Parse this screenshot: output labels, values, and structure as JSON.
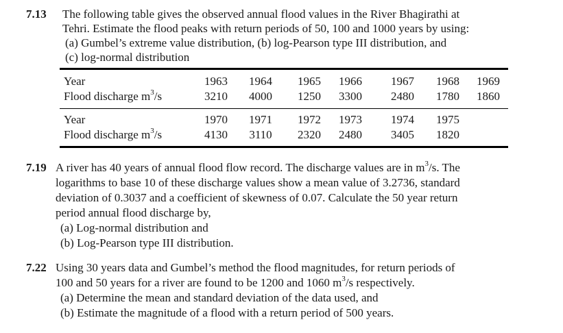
{
  "p713": {
    "number": "7.13",
    "lines": [
      "The following table gives the observed annual flood values in the River Bhagirathi at",
      "Tehri. Estimate the flood peaks with return periods of 50, 100 and 1000 years by using:",
      "(a)  Gumbel’s extreme value distribution,   (b)  log-Pearson type III distribution, and",
      "(c)  log-normal distribution"
    ],
    "table": {
      "row_label_year": "Year",
      "row_label_flow": "Flood discharge m",
      "unit_sup": "3",
      "unit_tail": "/s",
      "block1_years": [
        "1963",
        "1964",
        "1965",
        "1966",
        "1967",
        "1968",
        "1969"
      ],
      "block1_values": [
        "3210",
        "4000",
        "1250",
        "3300",
        "2480",
        "1780",
        "1860"
      ],
      "block2_years": [
        "1970",
        "1971",
        "1972",
        "1973",
        "1974",
        "1975"
      ],
      "block2_values": [
        "4130",
        "3110",
        "2320",
        "2480",
        "3405",
        "1820"
      ]
    }
  },
  "p719": {
    "number": "7.19",
    "line1_a": "A river has 40 years of annual flood flow record. The discharge values are in m",
    "line1_sup": "3",
    "line1_b": "/s. The",
    "line2": "logarithms to base 10 of these discharge values show a mean value of 3.2736, standard",
    "line3": "deviation of 0.3037 and a coefficient of skewness of 0.07. Calculate the 50 year return",
    "line4": "period annual flood discharge by,",
    "item_a": "(a)  Log-normal distribution and",
    "item_b": "(b)  Log-Pearson type III distribution."
  },
  "p722": {
    "number": "7.22",
    "line1": "Using 30 years data and Gumbel’s method the flood magnitudes, for return periods of",
    "line2_a": "100 and 50 years for a river are found to be 1200 and 1060 m",
    "line2_sup": "3",
    "line2_b": "/s respectively.",
    "item_a": "(a)  Determine the mean and standard deviation of the data used, and",
    "item_b": "(b)  Estimate the magnitude of a flood with a return period of 500 years."
  }
}
